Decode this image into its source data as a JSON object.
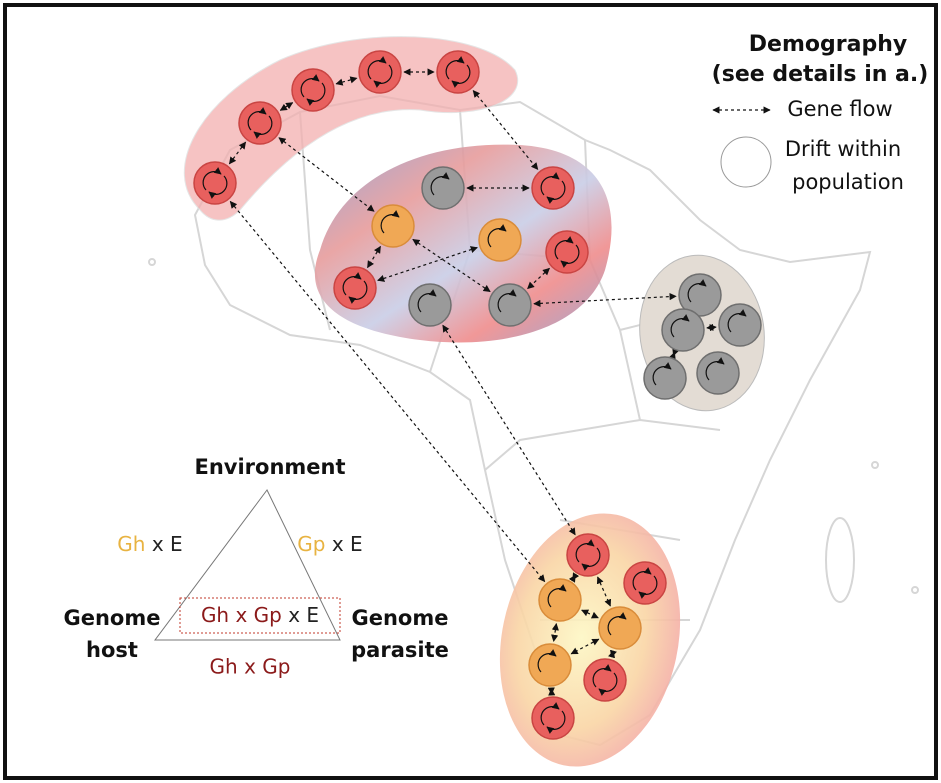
{
  "legend": {
    "title": "Demography",
    "subtitle": "(see details in a.)",
    "gene_flow": "Gene flow",
    "drift": [
      "Drift within",
      "population"
    ]
  },
  "triangle": {
    "top": "Environment",
    "left": [
      "Genome",
      "host"
    ],
    "right": [
      "Genome",
      "parasite"
    ],
    "left_edge": {
      "g": "Gh",
      "x_e": "x E"
    },
    "right_edge": {
      "g": "Gp",
      "x_e": "x E"
    },
    "center": {
      "g": "Gh x Gp",
      "x_e": "x E"
    },
    "bottom": "Gh x Gp"
  }
}
